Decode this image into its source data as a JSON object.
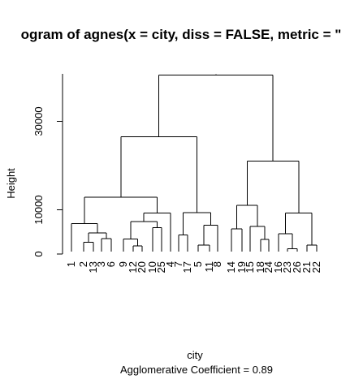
{
  "chart_data": {
    "type": "dendrogram",
    "title": "ogram of  agnes(x = city, diss = FALSE, metric = \"",
    "xlabel": "city",
    "subtitle": "Agglomerative Coefficient =  0.89",
    "ylabel": "Height",
    "ylim": [
      0,
      40000
    ],
    "yticks": [
      0,
      10000,
      30000
    ],
    "leaf_order": [
      "1",
      "2",
      "13",
      "3",
      "6",
      "9",
      "12",
      "20",
      "10",
      "25",
      "4",
      "7",
      "17",
      "5",
      "11",
      "8",
      "14",
      "19",
      "15",
      "18",
      "24",
      "16",
      "23",
      "26",
      "21",
      "22"
    ],
    "merges": [
      {
        "children": [
          "12",
          "20"
        ],
        "height": 1800
      },
      {
        "children": [
          "2",
          "13"
        ],
        "height": 2700
      },
      {
        "children": [
          "3",
          "6"
        ],
        "height": 3500
      },
      {
        "children": [
          "9",
          "12+20"
        ],
        "height": 3400
      },
      {
        "children": [
          "7",
          "17"
        ],
        "height": 4300
      },
      {
        "children": [
          "23",
          "26"
        ],
        "height": 1200
      },
      {
        "children": [
          "21",
          "22"
        ],
        "height": 2000
      },
      {
        "children": [
          "5",
          "11"
        ],
        "height": 2000
      },
      {
        "children": [
          "18",
          "24"
        ],
        "height": 3300
      },
      {
        "children": [
          "14",
          "19"
        ],
        "height": 5700
      },
      {
        "children": [
          "2+13",
          "3+6"
        ],
        "height": 4800
      },
      {
        "children": [
          "10",
          "25"
        ],
        "height": 6000
      },
      {
        "children": [
          "15",
          "18+24"
        ],
        "height": 6200
      },
      {
        "children": [
          "16",
          "23+26"
        ],
        "height": 4600
      },
      {
        "children": [
          "5+11",
          "8"
        ],
        "height": 6500
      },
      {
        "children": [
          "9+12+20",
          "10+25"
        ],
        "height": 7300
      },
      {
        "children": [
          "1",
          "2+13+3+6"
        ],
        "height": 6900
      },
      {
        "children": [
          "7+17",
          "5+11+8"
        ],
        "height": 9400
      },
      {
        "children": [
          "16+23+26",
          "21+22"
        ],
        "height": 9300
      },
      {
        "children": [
          "9..25",
          "4"
        ],
        "height": 9300
      },
      {
        "children": [
          "14+19",
          "15+18+24"
        ],
        "height": 11000
      },
      {
        "children": [
          "1..6",
          "9..25+4"
        ],
        "height": 12800
      },
      {
        "children": [
          "4..8"
        ],
        "height": 14200
      },
      {
        "children": [
          "4..8+7..8"
        ],
        "height": 16700
      },
      {
        "children": [
          "14..24",
          "16..22"
        ],
        "height": 21000
      },
      {
        "children": [
          "1..4",
          "4..8"
        ],
        "height": 26500
      },
      {
        "children": [
          "1..8",
          "14..22"
        ],
        "height": 40500
      }
    ]
  }
}
